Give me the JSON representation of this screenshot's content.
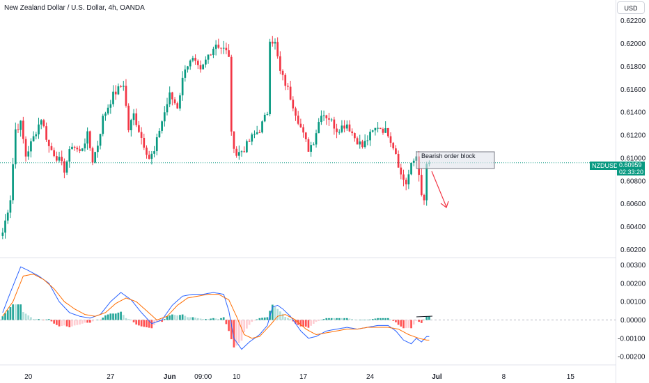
{
  "header": {
    "title": "New Zealand Dollar / U.S. Dollar, 4h, OANDA"
  },
  "toolbar": {
    "currency": "USD"
  },
  "price_tag": {
    "symbol": "NZDUSD",
    "price": "0.60959",
    "countdown": "02:33:20"
  },
  "annotation": {
    "label": "Bearish order block"
  },
  "colors": {
    "up": "#089981",
    "down": "#f23645",
    "macd": "#2962ff",
    "signal": "#ff6d00",
    "hist_up_strong": "#26a69a",
    "hist_up_weak": "#b2dfdb",
    "hist_down_strong": "#ff5252",
    "hist_down_weak": "#ffcdd2"
  },
  "chart_data": [
    {
      "type": "candlestick",
      "title": "New Zealand Dollar / U.S. Dollar, 4h, OANDA",
      "ylim": [
        0.6013,
        0.6232
      ],
      "y_ticks": [
        "0.62200",
        "0.62000",
        "0.61800",
        "0.61600",
        "0.61400",
        "0.61200",
        "0.61000",
        "0.60800",
        "0.60600",
        "0.60400",
        "0.60200"
      ],
      "y_tick_values": [
        0.622,
        0.62,
        0.618,
        0.616,
        0.614,
        0.612,
        0.61,
        0.608,
        0.606,
        0.604,
        0.602
      ],
      "x_ticks": [
        {
          "label": "20",
          "bar": 10,
          "bold": false
        },
        {
          "label": "27",
          "bar": 42,
          "bold": false
        },
        {
          "label": "Jun",
          "bar": 65,
          "bold": true
        },
        {
          "label": "09:00",
          "bar": 78,
          "bold": false
        },
        {
          "label": "10",
          "bar": 91,
          "bold": false
        },
        {
          "label": "17",
          "bar": 117,
          "bold": false
        },
        {
          "label": "24",
          "bar": 143,
          "bold": false
        },
        {
          "label": "Jul",
          "bar": 169,
          "bold": true
        },
        {
          "label": "8",
          "bar": 195,
          "bold": false
        },
        {
          "label": "15",
          "bar": 221,
          "bold": false
        }
      ],
      "last_price": 0.60959,
      "waypoints": [
        [
          0,
          0.6035
        ],
        [
          3,
          0.6065
        ],
        [
          5,
          0.6125
        ],
        [
          7,
          0.613
        ],
        [
          9,
          0.6102
        ],
        [
          12,
          0.6118
        ],
        [
          15,
          0.6135
        ],
        [
          18,
          0.611
        ],
        [
          22,
          0.6098
        ],
        [
          24,
          0.609
        ],
        [
          27,
          0.6112
        ],
        [
          30,
          0.6105
        ],
        [
          33,
          0.612
        ],
        [
          35,
          0.6098
        ],
        [
          37,
          0.6112
        ],
        [
          39,
          0.6135
        ],
        [
          43,
          0.6155
        ],
        [
          47,
          0.6165
        ],
        [
          49,
          0.6125
        ],
        [
          51,
          0.6138
        ],
        [
          54,
          0.6118
        ],
        [
          57,
          0.61
        ],
        [
          59,
          0.6105
        ],
        [
          61,
          0.6125
        ],
        [
          65,
          0.6155
        ],
        [
          68,
          0.6145
        ],
        [
          71,
          0.618
        ],
        [
          74,
          0.6185
        ],
        [
          77,
          0.6175
        ],
        [
          80,
          0.619
        ],
        [
          83,
          0.62
        ],
        [
          86,
          0.6195
        ],
        [
          88,
          0.619
        ],
        [
          89,
          0.612
        ],
        [
          91,
          0.6103
        ],
        [
          94,
          0.6108
        ],
        [
          97,
          0.6118
        ],
        [
          100,
          0.6125
        ],
        [
          103,
          0.614
        ],
        [
          104,
          0.6205
        ],
        [
          106,
          0.62
        ],
        [
          108,
          0.6175
        ],
        [
          111,
          0.616
        ],
        [
          114,
          0.614
        ],
        [
          117,
          0.612
        ],
        [
          119,
          0.6108
        ],
        [
          121,
          0.6115
        ],
        [
          124,
          0.614
        ],
        [
          127,
          0.6135
        ],
        [
          130,
          0.6125
        ],
        [
          134,
          0.613
        ],
        [
          137,
          0.6118
        ],
        [
          140,
          0.611
        ],
        [
          143,
          0.612
        ],
        [
          146,
          0.6128
        ],
        [
          150,
          0.6122
        ],
        [
          153,
          0.6105
        ],
        [
          155,
          0.6085
        ],
        [
          157,
          0.6078
        ],
        [
          159,
          0.6093
        ],
        [
          161,
          0.6102
        ],
        [
          162,
          0.6088
        ],
        [
          163,
          0.6065
        ],
        [
          164,
          0.6062
        ],
        [
          165,
          0.6095
        ],
        [
          166,
          0.6096
        ]
      ]
    },
    {
      "type": "line",
      "title": "MACD",
      "ylim": [
        -0.0023,
        0.0034
      ],
      "y_ticks": [
        "0.00300",
        "0.00200",
        "0.00100",
        "0.00000",
        "-0.00100",
        "-0.00200"
      ],
      "y_tick_values": [
        0.003,
        0.002,
        0.001,
        0.0,
        -0.001,
        -0.002
      ],
      "series": [
        {
          "role": "macd",
          "waypoints": [
            [
              0,
              0.0004
            ],
            [
              3,
              0.0015
            ],
            [
              7,
              0.0029
            ],
            [
              10,
              0.0027
            ],
            [
              14,
              0.0024
            ],
            [
              18,
              0.002
            ],
            [
              22,
              0.001
            ],
            [
              26,
              0.0004
            ],
            [
              30,
              0.0002
            ],
            [
              34,
              0.0001
            ],
            [
              38,
              0.0003
            ],
            [
              42,
              0.001
            ],
            [
              46,
              0.0015
            ],
            [
              50,
              0.0011
            ],
            [
              54,
              0.0004
            ],
            [
              58,
              -0.0002
            ],
            [
              62,
              0.0
            ],
            [
              66,
              0.0008
            ],
            [
              70,
              0.0013
            ],
            [
              74,
              0.0014
            ],
            [
              78,
              0.0014
            ],
            [
              82,
              0.0015
            ],
            [
              86,
              0.0014
            ],
            [
              88,
              0.0005
            ],
            [
              90,
              -0.001
            ],
            [
              93,
              -0.0016
            ],
            [
              96,
              -0.0012
            ],
            [
              100,
              -0.0008
            ],
            [
              103,
              -0.0003
            ],
            [
              105,
              0.0007
            ],
            [
              107,
              0.0008
            ],
            [
              109,
              0.0006
            ],
            [
              112,
              0.0002
            ],
            [
              116,
              -0.0006
            ],
            [
              119,
              -0.001
            ],
            [
              122,
              -0.0009
            ],
            [
              126,
              -0.0006
            ],
            [
              130,
              -0.0005
            ],
            [
              134,
              -0.0004
            ],
            [
              138,
              -0.0005
            ],
            [
              142,
              -0.0004
            ],
            [
              146,
              -0.0003
            ],
            [
              150,
              -0.0003
            ],
            [
              153,
              -0.0006
            ],
            [
              156,
              -0.0011
            ],
            [
              159,
              -0.0013
            ],
            [
              161,
              -0.001
            ],
            [
              163,
              -0.0012
            ],
            [
              165,
              -0.0009
            ]
          ]
        },
        {
          "role": "signal",
          "waypoints": [
            [
              0,
              0.0002
            ],
            [
              4,
              0.001
            ],
            [
              8,
              0.0024
            ],
            [
              12,
              0.0025
            ],
            [
              16,
              0.0022
            ],
            [
              20,
              0.0017
            ],
            [
              24,
              0.001
            ],
            [
              28,
              0.0006
            ],
            [
              32,
              0.0003
            ],
            [
              36,
              0.0002
            ],
            [
              40,
              0.0004
            ],
            [
              44,
              0.0009
            ],
            [
              48,
              0.0012
            ],
            [
              52,
              0.001
            ],
            [
              56,
              0.0005
            ],
            [
              60,
              0.0
            ],
            [
              64,
              0.0002
            ],
            [
              68,
              0.0008
            ],
            [
              72,
              0.0012
            ],
            [
              76,
              0.0013
            ],
            [
              80,
              0.0014
            ],
            [
              84,
              0.0014
            ],
            [
              88,
              0.0011
            ],
            [
              91,
              0.0002
            ],
            [
              94,
              -0.0008
            ],
            [
              97,
              -0.001
            ],
            [
              100,
              -0.0009
            ],
            [
              104,
              -0.0003
            ],
            [
              107,
              0.0002
            ],
            [
              110,
              0.0003
            ],
            [
              114,
              0.0
            ],
            [
              118,
              -0.0005
            ],
            [
              122,
              -0.0008
            ],
            [
              126,
              -0.0007
            ],
            [
              130,
              -0.0006
            ],
            [
              134,
              -0.0005
            ],
            [
              138,
              -0.0005
            ],
            [
              142,
              -0.0004
            ],
            [
              146,
              -0.0004
            ],
            [
              150,
              -0.0004
            ],
            [
              154,
              -0.0005
            ],
            [
              158,
              -0.0008
            ],
            [
              162,
              -0.001
            ],
            [
              165,
              -0.0011
            ]
          ]
        }
      ]
    }
  ]
}
